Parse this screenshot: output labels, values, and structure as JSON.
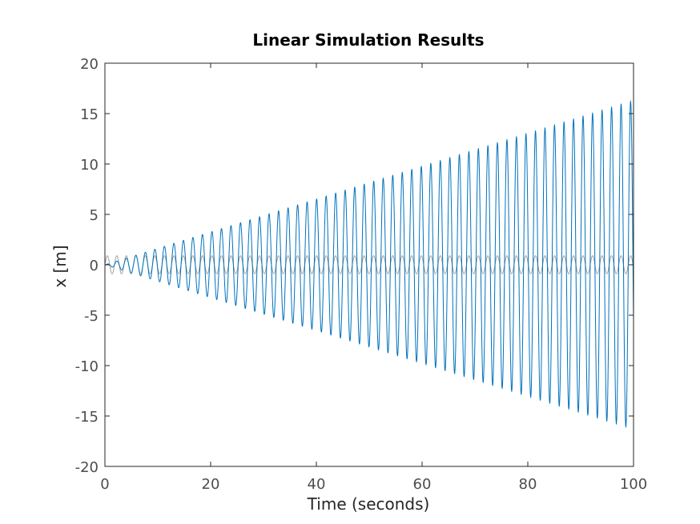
{
  "chart_data": {
    "type": "line",
    "title": "Linear Simulation Results",
    "xlabel": "Time (seconds)",
    "ylabel": "x [m]",
    "xlim": [
      0,
      100
    ],
    "ylim": [
      -20,
      20
    ],
    "xticks": [
      "0",
      "20",
      "40",
      "60",
      "80",
      "100"
    ],
    "yticks": [
      "20",
      "15",
      "10",
      "5",
      "0",
      "-5",
      "-10",
      "-15",
      "-20"
    ],
    "grid": false,
    "legend": "none",
    "series": [
      {
        "role": "input",
        "color": "#999999",
        "form": "constant-amplitude sinusoid",
        "amplitude": 0.9,
        "period_s": 1.8,
        "t_start": 0,
        "t_end": 100
      },
      {
        "role": "response",
        "color": "#0072bd",
        "form": "linearly growing sinusoid (resonance)",
        "amplitude_at_t0": 0,
        "amplitude_at_t100": 16.3,
        "period_s": 1.8,
        "t_start": 0,
        "t_end": 100
      }
    ]
  }
}
